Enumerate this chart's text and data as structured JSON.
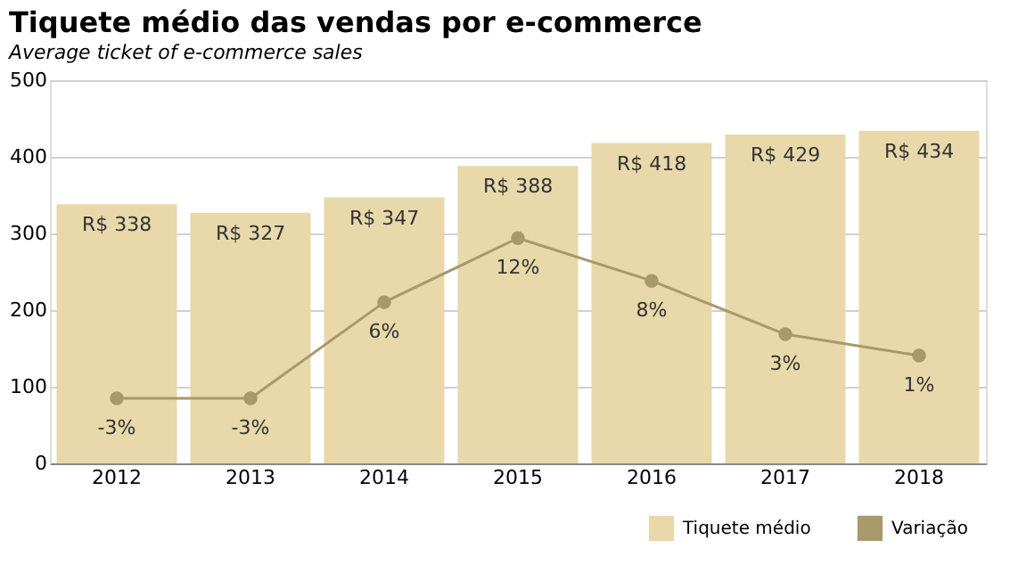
{
  "chart_data": {
    "type": "bar",
    "title": "Tiquete médio das vendas por e-commerce",
    "subtitle": "Average ticket of e-commerce sales",
    "categories": [
      "2012",
      "2013",
      "2014",
      "2015",
      "2016",
      "2017",
      "2018"
    ],
    "series": [
      {
        "name": "Tiquete médio",
        "color": "#e8d8aa",
        "values": [
          338,
          327,
          347,
          388,
          418,
          429,
          434
        ],
        "value_labels": [
          "R$ 338",
          "R$ 327",
          "R$ 347",
          "R$ 388",
          "R$ 418",
          "R$ 429",
          "R$ 434"
        ]
      },
      {
        "name": "Variação",
        "type": "line",
        "axis": "y2",
        "color": "#a8996b",
        "values": [
          -3,
          -3,
          6,
          12,
          8,
          3,
          1
        ],
        "value_labels": [
          "-3%",
          "-3%",
          "6%",
          "12%",
          "8%",
          "3%",
          "1%"
        ]
      }
    ],
    "ylim": [
      0,
      500
    ],
    "yticks": [
      0,
      100,
      200,
      300,
      400,
      500
    ],
    "y2lim": [
      -9.1,
      26.8
    ],
    "grid": "y",
    "legend": "bottom right",
    "marker": "circle",
    "line_style": "solid"
  }
}
